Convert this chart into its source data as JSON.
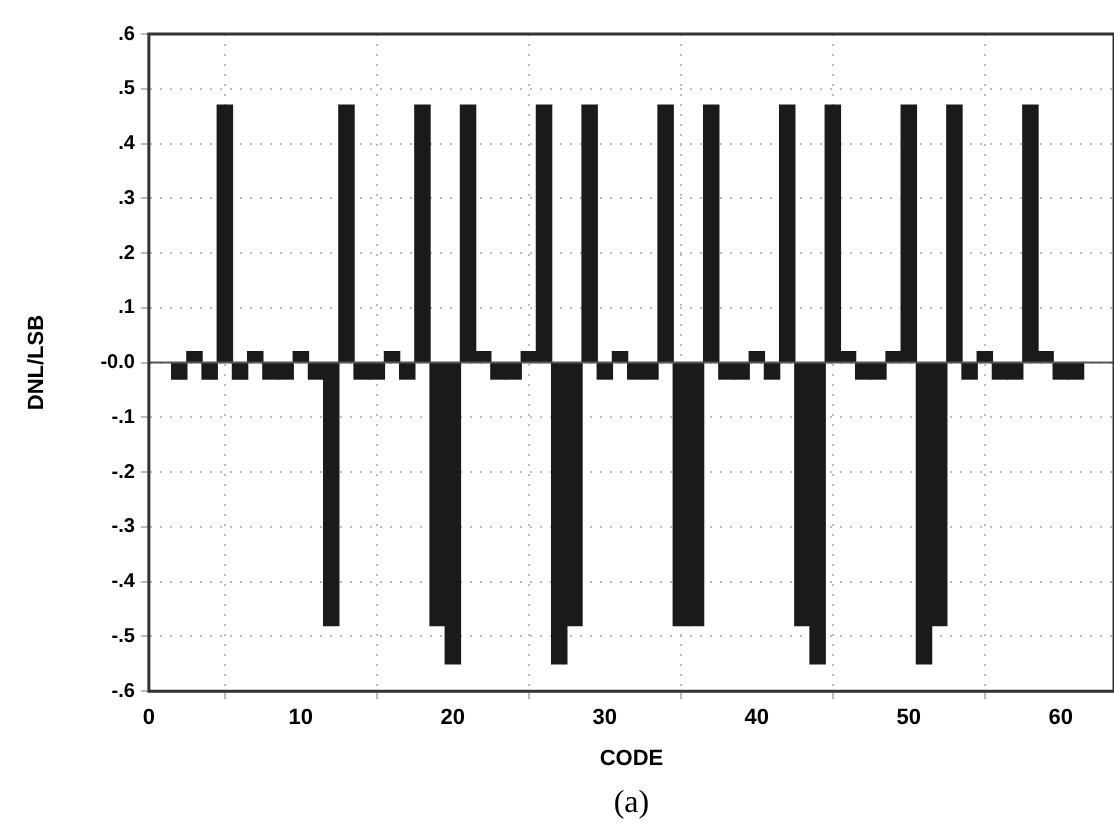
{
  "chart_data": {
    "type": "bar",
    "xlabel": "CODE",
    "ylabel": "DNL/LSB",
    "annotations": [
      "(a)"
    ],
    "x": [
      2,
      3,
      4,
      5,
      6,
      7,
      8,
      9,
      10,
      11,
      12,
      13,
      14,
      15,
      16,
      17,
      18,
      19,
      20,
      21,
      22,
      23,
      24,
      25,
      26,
      27,
      28,
      29,
      30,
      31,
      32,
      33,
      34,
      35,
      36,
      37,
      38,
      39,
      40,
      41,
      42,
      43,
      44,
      45,
      46,
      47,
      48,
      49,
      50,
      51,
      52,
      53,
      54,
      55,
      56,
      57,
      58,
      59,
      60,
      61
    ],
    "values": [
      -0.03,
      0.02,
      -0.03,
      0.47,
      -0.03,
      0.02,
      -0.03,
      -0.03,
      0.02,
      -0.03,
      -0.48,
      0.47,
      -0.03,
      -0.03,
      0.02,
      -0.03,
      0.47,
      -0.48,
      -0.55,
      0.47,
      0.02,
      -0.03,
      -0.03,
      0.02,
      0.47,
      -0.55,
      -0.48,
      0.47,
      -0.03,
      0.02,
      -0.03,
      -0.03,
      0.47,
      -0.48,
      -0.48,
      0.47,
      -0.03,
      -0.03,
      0.02,
      -0.03,
      0.47,
      -0.48,
      -0.55,
      0.47,
      0.02,
      -0.03,
      -0.03,
      0.02,
      0.47,
      -0.55,
      -0.48,
      0.47,
      -0.03,
      0.02,
      -0.03,
      -0.03,
      0.47,
      0.02,
      -0.03,
      -0.03
    ],
    "color": "#1a1a1a",
    "xlim": [
      0,
      63.5
    ],
    "xticks": [
      0,
      10,
      20,
      30,
      40,
      50,
      60
    ],
    "ylim": [
      -0.6,
      0.6
    ],
    "yticks": [
      {
        "value": 0.6,
        "label": ".6"
      },
      {
        "value": 0.5,
        "label": ".5"
      },
      {
        "value": 0.4,
        "label": ".4"
      },
      {
        "value": 0.3,
        "label": ".3"
      },
      {
        "value": 0.2,
        "label": ".2"
      },
      {
        "value": 0.1,
        "label": ".1"
      },
      {
        "value": 0,
        "label": "-0.0"
      },
      {
        "value": -0.1,
        "label": "-.1"
      },
      {
        "value": -0.2,
        "label": "-.2"
      },
      {
        "value": -0.3,
        "label": "-.3"
      },
      {
        "value": -0.4,
        "label": "-.4"
      },
      {
        "value": -0.5,
        "label": "-.5"
      },
      {
        "value": -0.6,
        "label": "-.6"
      }
    ],
    "ref_lines": [
      {
        "axis": "y",
        "value": 0
      }
    ],
    "grid": true
  }
}
